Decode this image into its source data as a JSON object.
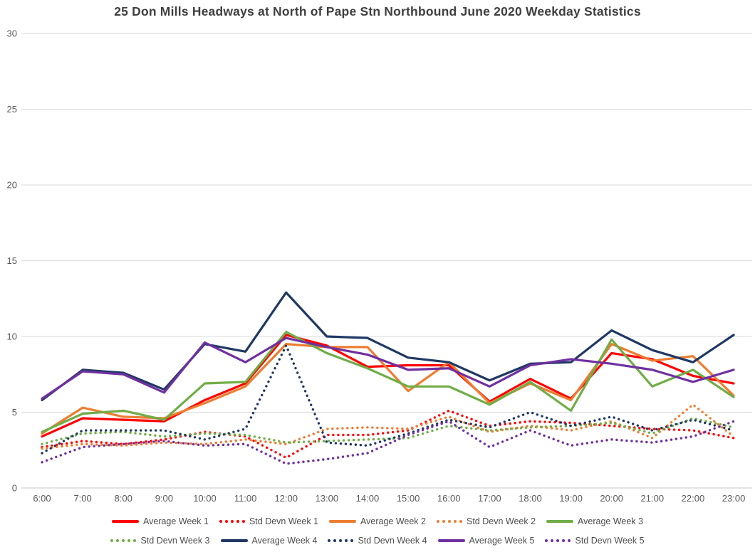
{
  "chart_data": {
    "type": "line",
    "title": "25 Don Mills Headways at North of Pape Stn Northbound June 2020 Weekday Statistics",
    "xlabel": "",
    "ylabel": "",
    "ylim": [
      0,
      30
    ],
    "y_ticks": [
      0,
      5,
      10,
      15,
      20,
      25,
      30
    ],
    "grid": "horizontal",
    "legend_position": "bottom",
    "x": [
      "6:00",
      "7:00",
      "8:00",
      "9:00",
      "10:00",
      "11:00",
      "12:00",
      "13:00",
      "14:00",
      "15:00",
      "16:00",
      "17:00",
      "18:00",
      "19:00",
      "20:00",
      "21:00",
      "22:00",
      "23:00"
    ],
    "series": [
      {
        "name": "Average Week 1",
        "style": "solid",
        "color": "#ff0000",
        "values": [
          3.4,
          4.6,
          4.5,
          4.4,
          5.8,
          6.9,
          10.1,
          9.4,
          8.0,
          8.1,
          8.1,
          5.7,
          7.2,
          5.9,
          8.9,
          8.5,
          7.4,
          6.9
        ]
      },
      {
        "name": "Std Devn Week 1",
        "style": "dotted",
        "color": "#ff0000",
        "values": [
          2.7,
          3.1,
          2.9,
          3.2,
          3.7,
          3.4,
          2.0,
          3.5,
          3.5,
          3.8,
          5.1,
          4.1,
          4.4,
          4.3,
          4.1,
          3.9,
          3.8,
          3.3
        ]
      },
      {
        "name": "Average Week 2",
        "style": "solid",
        "color": "#ed7d31",
        "values": [
          3.6,
          5.3,
          4.7,
          4.6,
          5.6,
          6.7,
          9.5,
          9.3,
          9.3,
          6.4,
          8.3,
          5.6,
          6.9,
          5.8,
          9.5,
          8.4,
          8.7,
          6.1
        ]
      },
      {
        "name": "Std Devn Week 2",
        "style": "dotted",
        "color": "#ed7d31",
        "values": [
          2.6,
          2.9,
          2.8,
          3.0,
          2.9,
          3.2,
          2.9,
          3.9,
          4.0,
          3.9,
          4.7,
          3.7,
          4.1,
          3.8,
          4.4,
          3.3,
          5.5,
          3.4
        ]
      },
      {
        "name": "Average Week 3",
        "style": "solid",
        "color": "#70ad47",
        "values": [
          3.7,
          4.9,
          5.1,
          4.5,
          6.9,
          7.0,
          10.3,
          8.9,
          7.9,
          6.7,
          6.7,
          5.5,
          7.0,
          5.1,
          9.8,
          6.7,
          7.8,
          6.0
        ]
      },
      {
        "name": "Std Devn Week 3",
        "style": "dotted",
        "color": "#70ad47",
        "values": [
          2.9,
          3.6,
          3.7,
          3.4,
          3.6,
          3.5,
          3.0,
          3.1,
          3.2,
          3.3,
          4.1,
          3.8,
          4.0,
          4.1,
          4.3,
          3.6,
          4.6,
          4.0
        ]
      },
      {
        "name": "Average Week 4",
        "style": "solid",
        "color": "#1f3864",
        "values": [
          5.8,
          7.8,
          7.6,
          6.5,
          9.5,
          9.0,
          12.9,
          10.0,
          9.9,
          8.6,
          8.3,
          7.1,
          8.2,
          8.3,
          10.4,
          9.1,
          8.3,
          10.1
        ]
      },
      {
        "name": "Std Devn Week 4",
        "style": "dotted",
        "color": "#1f3864",
        "values": [
          2.3,
          3.8,
          3.8,
          3.8,
          3.2,
          3.9,
          9.4,
          3.0,
          2.8,
          3.6,
          4.5,
          4.0,
          5.0,
          4.1,
          4.7,
          3.8,
          4.5,
          3.8
        ]
      },
      {
        "name": "Average Week 5",
        "style": "solid",
        "color": "#7030a0",
        "values": [
          5.9,
          7.7,
          7.5,
          6.3,
          9.6,
          8.3,
          9.9,
          9.3,
          8.8,
          7.8,
          7.9,
          6.7,
          8.1,
          8.5,
          8.2,
          7.8,
          7.0,
          7.8
        ]
      },
      {
        "name": "Std Devn Week 5",
        "style": "dotted",
        "color": "#7030a0",
        "values": [
          1.7,
          2.7,
          2.9,
          3.1,
          2.8,
          2.9,
          1.6,
          1.9,
          2.3,
          3.5,
          4.4,
          2.7,
          3.8,
          2.8,
          3.2,
          3.0,
          3.4,
          4.4
        ]
      }
    ],
    "legend_rows": [
      [
        "Average Week 1",
        "Std Devn Week 1",
        "Average Week 2",
        "Std Devn Week 2",
        "Average Week 3"
      ],
      [
        "Std Devn Week 3",
        "Average Week 4",
        "Std Devn Week 4",
        "Average Week 5",
        "Std Devn Week 5"
      ]
    ],
    "colors": {
      "grid": "#d9d9d9",
      "axis_line": "#c9c9c9",
      "tick_text": "#595959",
      "title_text": "#3f3f3f",
      "legend_text": "#4d4d4d"
    }
  }
}
